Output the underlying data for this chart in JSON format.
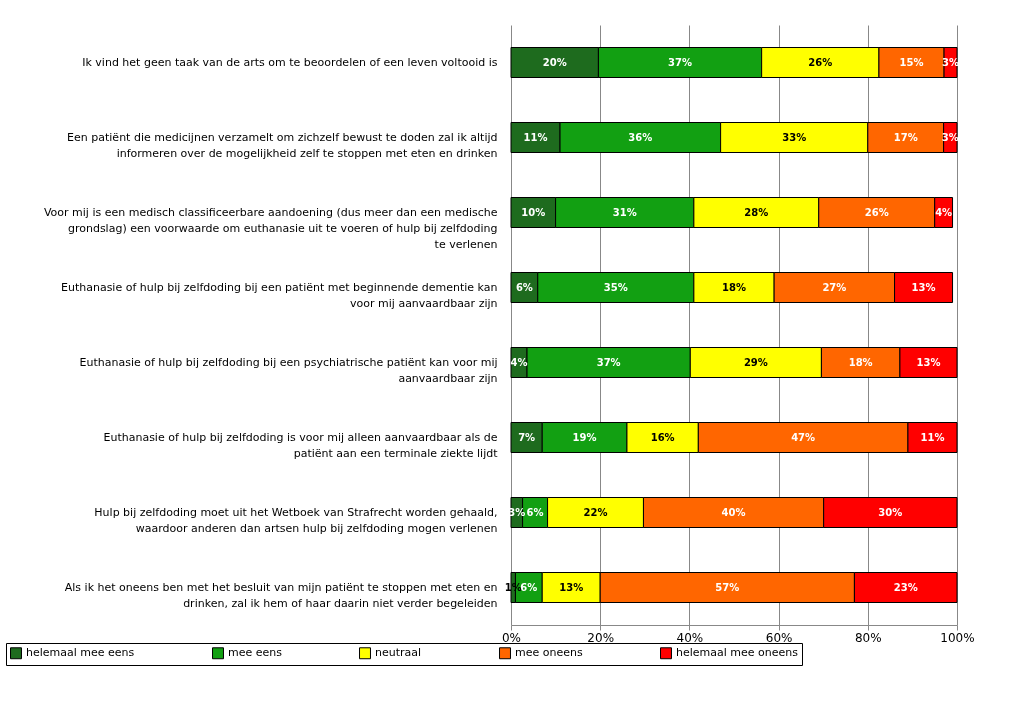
{
  "chart_data": {
    "type": "bar",
    "orientation": "horizontal",
    "stacked": true,
    "grid": "x",
    "legend": "bottom",
    "categories": [
      "Ik vind het geen taak van de arts om te beoordelen of een leven voltooid is",
      "Een patiënt die medicijnen verzamelt om zichzelf bewust te doden zal ik altijd informeren over de mogelijkheid zelf te stoppen met eten en drinken",
      "Voor mij is een medisch classificeerbare aandoening (dus meer dan een medische grondslag) een voorwaarde om euthanasie uit te voeren of hulp bij zelfdoding te verlenen",
      "Euthanasie of hulp bij zelfdoding bij een patiënt met beginnende dementie kan voor mij aanvaardbaar zijn",
      "Euthanasie of hulp bij zelfdoding bij een psychiatrische patiënt kan voor mij aanvaardbaar zijn",
      "Euthanasie of hulp bij zelfdoding is voor mij alleen aanvaardbaar als de patiënt aan een terminale ziekte lijdt",
      "Hulp bij zelfdoding moet uit het Wetboek van Strafrecht worden gehaald, waardoor anderen dan artsen hulp bij zelfdoding mogen verlenen",
      "Als ik het oneens ben met het besluit van mijn patiënt te stoppen met eten en drinken, zal ik hem of haar daarin niet verder begeleiden"
    ],
    "series": [
      {
        "name": "helemaal mee eens",
        "color": "#1e6b1e",
        "values": [
          19.6,
          11,
          10,
          6,
          3.6,
          7,
          2.6,
          1
        ],
        "value_labels": [
          "20%",
          "11%",
          "10%",
          "6%",
          "4%",
          "7%",
          "3%",
          "1%"
        ]
      },
      {
        "name": "mee eens",
        "color": "#12a012",
        "values": [
          36.6,
          36,
          31,
          35,
          36.6,
          19,
          5.6,
          6
        ],
        "value_labels": [
          "37%",
          "36%",
          "31%",
          "35%",
          "37%",
          "19%",
          "6%",
          "6%"
        ]
      },
      {
        "name": "neutraal",
        "color": "#ffff00",
        "values": [
          26.3,
          33,
          28,
          18,
          29.4,
          16,
          21.5,
          13
        ],
        "value_labels": [
          "26%",
          "33%",
          "28%",
          "18%",
          "29%",
          "16%",
          "22%",
          "13%"
        ]
      },
      {
        "name": "mee oneens",
        "color": "#ff6600",
        "values": [
          14.6,
          17,
          26,
          27,
          17.6,
          47,
          40.4,
          57
        ],
        "value_labels": [
          "15%",
          "17%",
          "26%",
          "27%",
          "18%",
          "47%",
          "40%",
          "57%"
        ]
      },
      {
        "name": "helemaal mee oneens",
        "color": "#ff0000",
        "values": [
          2.9,
          3,
          4,
          13,
          12.8,
          11,
          29.9,
          23
        ],
        "value_labels": [
          "3%",
          "3%",
          "4%",
          "13%",
          "13%",
          "11%",
          "30%",
          "23%"
        ]
      }
    ],
    "xlim": [
      0,
      100
    ],
    "xticks": [
      {
        "value": 0,
        "label": "0%"
      },
      {
        "value": 20,
        "label": "20%"
      },
      {
        "value": 40,
        "label": "40%"
      },
      {
        "value": 60,
        "label": "60%"
      },
      {
        "value": 80,
        "label": "80%"
      },
      {
        "value": 100,
        "label": "100%"
      }
    ]
  }
}
